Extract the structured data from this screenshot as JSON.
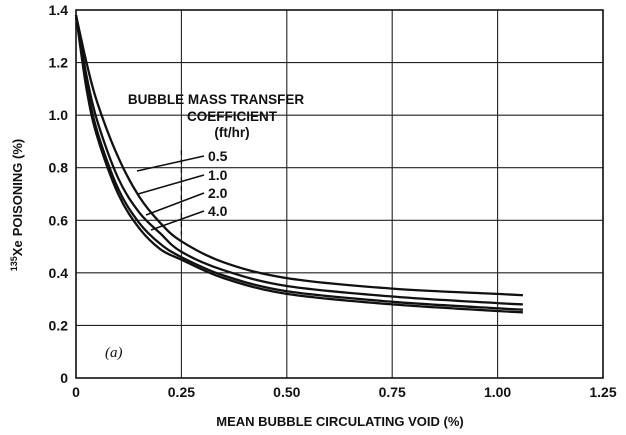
{
  "chart_data": {
    "type": "line",
    "xlabel": "MEAN BUBBLE CIRCULATING VOID (%)",
    "ylabel_sup": "135",
    "ylabel_sub": "Xe",
    "ylabel_main": "POISONING (%)",
    "xlim": [
      0,
      1.25
    ],
    "ylim": [
      0,
      1.4
    ],
    "x_ticks": [
      "0",
      "0.25",
      "0.50",
      "0.75",
      "1.00",
      "1.25"
    ],
    "y_ticks": [
      "0",
      "0.2",
      "0.4",
      "0.6",
      "0.8",
      "1.0",
      "1.2",
      "1.4"
    ],
    "grid": true,
    "annotation": {
      "line1": "BUBBLE MASS TRANSFER",
      "line2": "COEFFICIENT",
      "line3": "(ft/hr)"
    },
    "panel_label": "(a)",
    "x": [
      0,
      0.025,
      0.05,
      0.1,
      0.15,
      0.2,
      0.25,
      0.35,
      0.5,
      0.75,
      1.0,
      1.06
    ],
    "series": [
      {
        "name": "0.5",
        "values": [
          1.38,
          1.2,
          1.05,
          0.84,
          0.69,
          0.59,
          0.52,
          0.44,
          0.38,
          0.34,
          0.32,
          0.315
        ]
      },
      {
        "name": "1.0",
        "values": [
          1.38,
          1.15,
          0.98,
          0.76,
          0.63,
          0.55,
          0.48,
          0.41,
          0.35,
          0.31,
          0.285,
          0.28
        ]
      },
      {
        "name": "2.0",
        "values": [
          1.38,
          1.12,
          0.94,
          0.72,
          0.59,
          0.51,
          0.46,
          0.39,
          0.33,
          0.29,
          0.265,
          0.26
        ]
      },
      {
        "name": "4.0",
        "values": [
          1.38,
          1.1,
          0.92,
          0.7,
          0.57,
          0.49,
          0.45,
          0.38,
          0.32,
          0.28,
          0.255,
          0.25
        ]
      }
    ]
  }
}
